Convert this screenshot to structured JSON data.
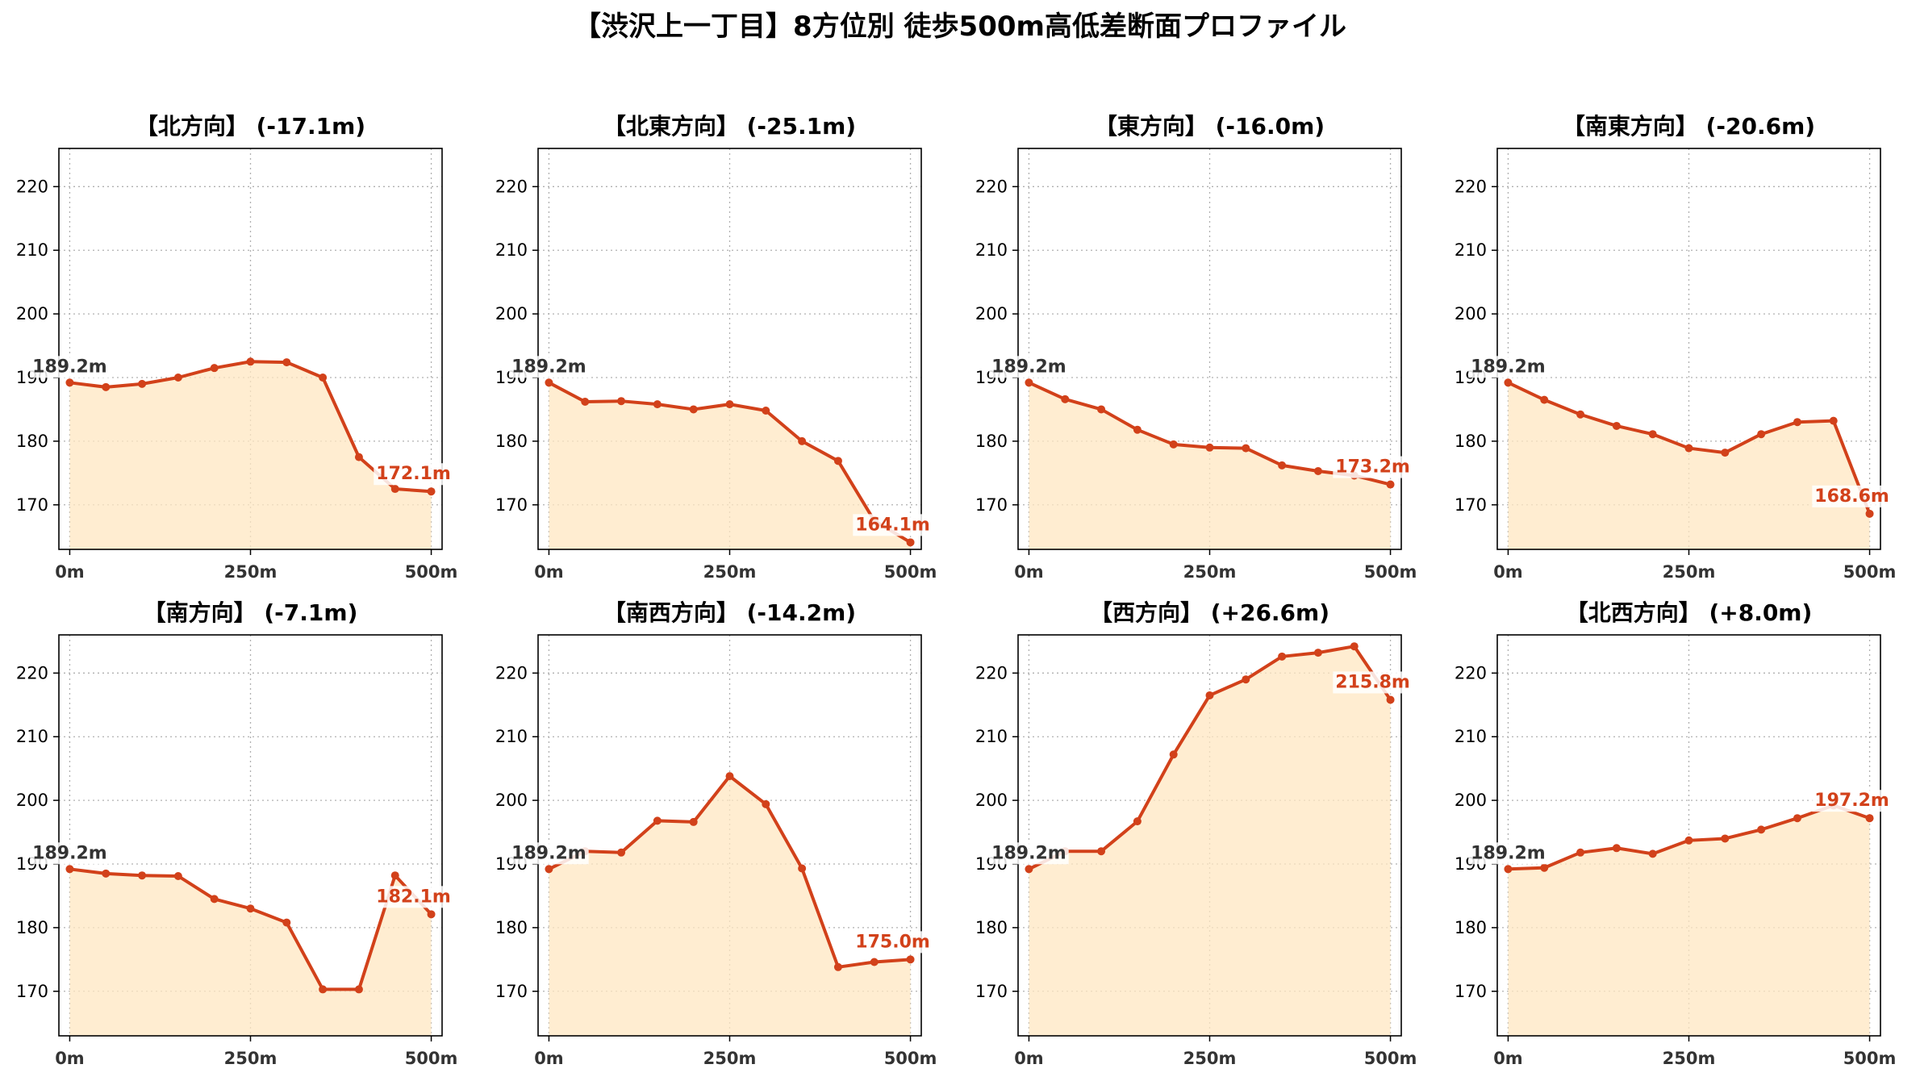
{
  "title": "【渋沢上一丁目】8方位別 徒歩500m高低差断面プロファイル",
  "chart_data": [
    {
      "type": "line",
      "title": "【北方向】 (-17.1m)",
      "x": [
        0,
        50,
        100,
        150,
        200,
        250,
        300,
        350,
        400,
        450,
        500
      ],
      "values": [
        189.2,
        188.5,
        189.0,
        190.0,
        191.5,
        192.5,
        192.4,
        190.0,
        177.5,
        172.5,
        172.1
      ],
      "start_label": "189.2m",
      "end_label": "172.1m"
    },
    {
      "type": "line",
      "title": "【北東方向】 (-25.1m)",
      "x": [
        0,
        50,
        100,
        150,
        200,
        250,
        300,
        350,
        400,
        450,
        500
      ],
      "values": [
        189.2,
        186.2,
        186.3,
        185.8,
        185.0,
        185.8,
        184.8,
        180.0,
        176.9,
        167.5,
        164.1
      ],
      "start_label": "189.2m",
      "end_label": "164.1m"
    },
    {
      "type": "line",
      "title": "【東方向】 (-16.0m)",
      "x": [
        0,
        50,
        100,
        150,
        200,
        250,
        300,
        350,
        400,
        450,
        500
      ],
      "values": [
        189.2,
        186.6,
        185.0,
        181.8,
        179.5,
        179.0,
        178.9,
        176.2,
        175.3,
        174.6,
        173.2
      ],
      "start_label": "189.2m",
      "end_label": "173.2m"
    },
    {
      "type": "line",
      "title": "【南東方向】 (-20.6m)",
      "x": [
        0,
        50,
        100,
        150,
        200,
        250,
        300,
        350,
        400,
        450,
        500
      ],
      "values": [
        189.2,
        186.5,
        184.2,
        182.4,
        181.1,
        178.9,
        178.2,
        181.1,
        183.0,
        183.2,
        168.6
      ],
      "start_label": "189.2m",
      "end_label": "168.6m"
    },
    {
      "type": "line",
      "title": "【南方向】 (-7.1m)",
      "x": [
        0,
        50,
        100,
        150,
        200,
        250,
        300,
        350,
        400,
        450,
        500
      ],
      "values": [
        189.2,
        188.5,
        188.2,
        188.1,
        184.5,
        183.0,
        180.8,
        170.3,
        170.3,
        188.2,
        182.1
      ],
      "start_label": "189.2m",
      "end_label": "182.1m"
    },
    {
      "type": "line",
      "title": "【南西方向】 (-14.2m)",
      "x": [
        0,
        50,
        100,
        150,
        200,
        250,
        300,
        350,
        400,
        450,
        500
      ],
      "values": [
        189.2,
        192.0,
        191.8,
        196.8,
        196.6,
        203.8,
        199.4,
        189.3,
        173.8,
        174.6,
        175.0
      ],
      "start_label": "189.2m",
      "end_label": "175.0m"
    },
    {
      "type": "line",
      "title": "【西方向】 (+26.6m)",
      "x": [
        0,
        50,
        100,
        150,
        200,
        250,
        300,
        350,
        400,
        450,
        500
      ],
      "values": [
        189.2,
        192.0,
        192.0,
        196.7,
        207.2,
        216.5,
        219.0,
        222.6,
        223.2,
        224.2,
        215.8
      ],
      "start_label": "189.2m",
      "end_label": "215.8m"
    },
    {
      "type": "line",
      "title": "【北西方向】 (+8.0m)",
      "x": [
        0,
        50,
        100,
        150,
        200,
        250,
        300,
        350,
        400,
        450,
        500
      ],
      "values": [
        189.2,
        189.4,
        191.8,
        192.5,
        191.6,
        193.7,
        194.0,
        195.4,
        197.2,
        199.2,
        197.2
      ],
      "start_label": "189.2m",
      "end_label": "197.2m"
    }
  ],
  "axes": {
    "x_ticks": [
      "0m",
      "250m",
      "500m"
    ],
    "x_tick_values": [
      0,
      250,
      500
    ],
    "y_ticks": [
      "170",
      "180",
      "190",
      "200",
      "210",
      "220"
    ],
    "y_tick_values": [
      170,
      180,
      190,
      200,
      210,
      220
    ],
    "xlim": [
      -15,
      515
    ],
    "ylim": [
      163,
      226
    ],
    "grid": true
  },
  "colors": {
    "line": "#d2411a",
    "fill": "#ffe7c2",
    "start_label": "#333333"
  }
}
